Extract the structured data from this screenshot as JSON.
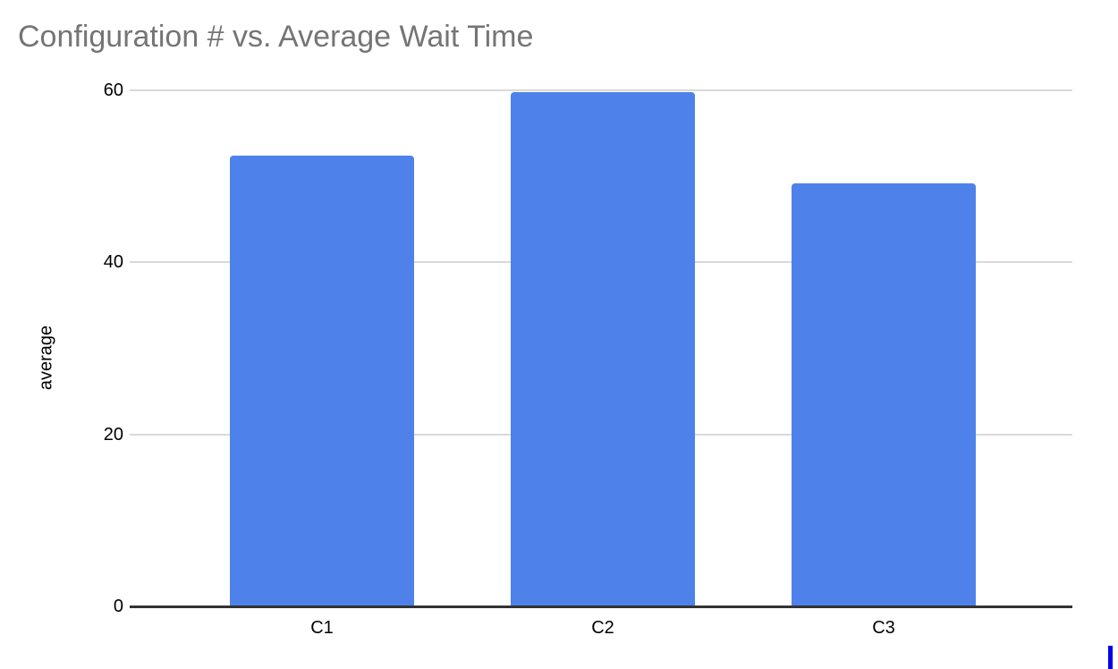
{
  "chart_data": {
    "type": "bar",
    "title": "Configuration # vs. Average Wait Time",
    "categories": [
      "C1",
      "C2",
      "C3"
    ],
    "values": [
      52.4,
      59.8,
      49.2
    ],
    "xlabel": "",
    "ylabel": "average",
    "ylim": [
      0,
      60
    ],
    "yticks": [
      0,
      20,
      40,
      60
    ],
    "grid": true,
    "legend": "none"
  },
  "colors": {
    "background": "#ffffff",
    "title_text": "#757575",
    "axis_text": "#000000",
    "gridline": "#d9d9d9",
    "axis_line": "#333333",
    "bar": "#4e82ea",
    "cursor": "#0000ee"
  }
}
